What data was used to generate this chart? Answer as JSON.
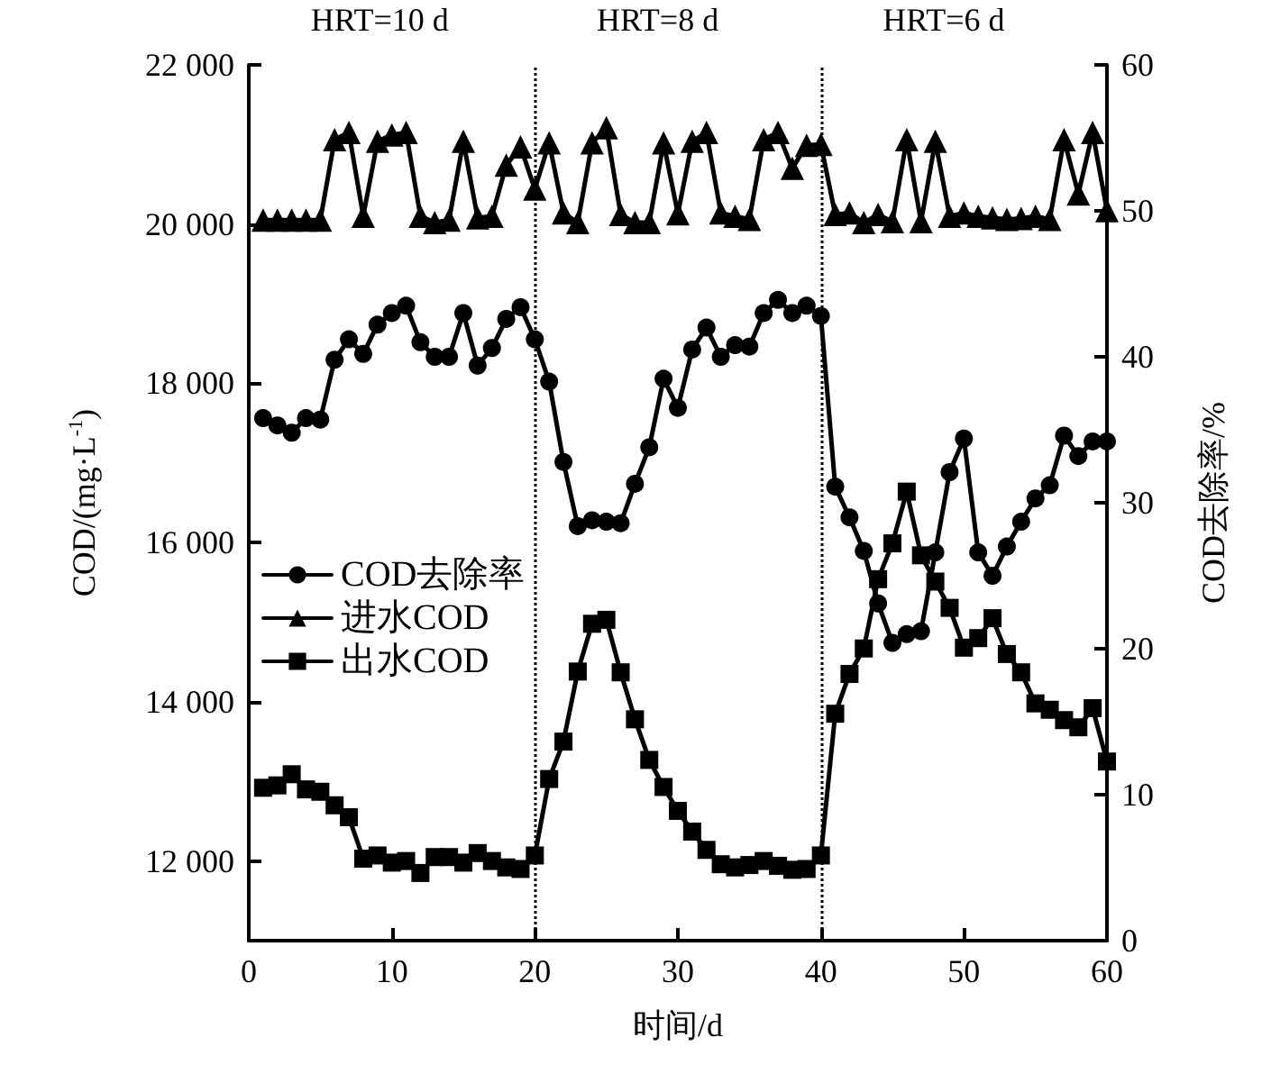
{
  "chart_data": {
    "type": "line",
    "xlabel": "时间/d",
    "ylabel": "COD/(mg·L$^{-1}$)",
    "y2label": "COD去除率/%",
    "annotations": [
      "HRT=10 d",
      "HRT=8 d",
      "HRT=6 d"
    ],
    "x": [
      1,
      2,
      3,
      4,
      5,
      6,
      7,
      8,
      9,
      10,
      11,
      12,
      13,
      14,
      15,
      16,
      17,
      18,
      19,
      20,
      21,
      22,
      23,
      24,
      25,
      26,
      27,
      28,
      29,
      30,
      31,
      32,
      33,
      34,
      35,
      36,
      37,
      38,
      39,
      40,
      41,
      42,
      43,
      44,
      45,
      46,
      47,
      48,
      49,
      50,
      51,
      52,
      53,
      54,
      55,
      56,
      57,
      58,
      59,
      60
    ],
    "series": [
      {
        "name": "COD去除率",
        "color": "#000000",
        "marker": "circle",
        "axis": "y2",
        "values": [
          35.8,
          35.3,
          34.8,
          35.8,
          35.7,
          39.8,
          41.2,
          40.2,
          42.2,
          43.0,
          43.5,
          41.0,
          40.0,
          40.0,
          43.0,
          39.4,
          40.6,
          42.6,
          43.4,
          41.2,
          38.3,
          32.8,
          28.4,
          28.8,
          28.7,
          28.6,
          31.3,
          33.8,
          38.5,
          36.5,
          40.5,
          42.0,
          40.0,
          40.8,
          40.7,
          43.0,
          43.9,
          43.0,
          43.5,
          42.8,
          31.1,
          29.0,
          26.7,
          23.1,
          20.4,
          21.0,
          21.2,
          26.6,
          32.1,
          34.4,
          26.6,
          25.0,
          27.0,
          28.7,
          30.3,
          31.2,
          34.6,
          33.2,
          34.2,
          34.2
        ]
      },
      {
        "name": "进水COD",
        "color": "#000000",
        "marker": "triangle",
        "values": [
          20050,
          20050,
          20050,
          20050,
          20050,
          21060,
          21150,
          20100,
          21040,
          21120,
          21150,
          20100,
          20020,
          20050,
          21040,
          20080,
          20100,
          20740,
          20970,
          20440,
          21020,
          20140,
          20020,
          21020,
          21210,
          20120,
          20020,
          20020,
          21020,
          20130,
          21040,
          21150,
          20140,
          20100,
          20060,
          21060,
          21150,
          20700,
          20990,
          21000,
          20120,
          20140,
          20020,
          20120,
          20030,
          21060,
          20030,
          21040,
          20100,
          20140,
          20100,
          20080,
          20060,
          20070,
          20100,
          20060,
          21060,
          20380,
          21150,
          20170
        ]
      },
      {
        "name": "出水COD",
        "color": "#000000",
        "marker": "square",
        "values": [
          12920,
          12950,
          13090,
          12900,
          12870,
          12700,
          12550,
          12030,
          12070,
          11980,
          12000,
          11850,
          12050,
          12050,
          11980,
          12100,
          12000,
          11920,
          11900,
          12070,
          13030,
          13500,
          14380,
          14980,
          15030,
          14370,
          13780,
          13270,
          12930,
          12630,
          12370,
          12140,
          11960,
          11920,
          11950,
          12000,
          11940,
          11890,
          11900,
          12070,
          13850,
          14350,
          14670,
          15540,
          15990,
          16640,
          15840,
          15510,
          15180,
          14680,
          14800,
          15050,
          14600,
          14370,
          13980,
          13900,
          13770,
          13680,
          13920,
          13250
        ]
      }
    ],
    "xlim": [
      0,
      60
    ],
    "xticks": [
      0,
      10,
      20,
      30,
      40,
      50,
      60
    ],
    "ylim": [
      11000,
      22000
    ],
    "yticks": [
      {
        "value": 12000,
        "label": "12 000"
      },
      {
        "value": 14000,
        "label": "14 000"
      },
      {
        "value": 16000,
        "label": "16 000"
      },
      {
        "value": 18000,
        "label": "18 000"
      },
      {
        "value": 20000,
        "label": "20 000"
      },
      {
        "value": 22000,
        "label": "22 000"
      }
    ],
    "y2lim": [
      0,
      60
    ],
    "y2ticks": [
      0,
      10,
      20,
      30,
      40,
      50,
      60
    ],
    "ref_lines": [
      {
        "axis": "x",
        "value": 20,
        "color": "#000000",
        "line_style": "dotted"
      },
      {
        "axis": "x",
        "value": 40,
        "color": "#000000",
        "line_style": "dotted"
      }
    ],
    "legend": "left",
    "grid": false,
    "line_style": "solid"
  }
}
